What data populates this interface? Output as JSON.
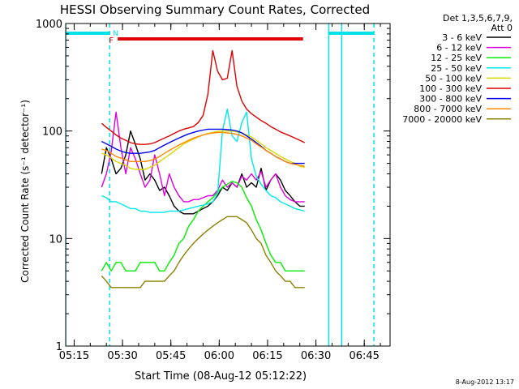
{
  "chart_data": {
    "type": "line",
    "title": "HESSI Observing Summary Count Rates, Corrected",
    "xlabel": "Start Time (08-Aug-12 05:12:22)",
    "ylabel": "Corrected Count Rate (s⁻¹ detector⁻¹)",
    "yscale": "log",
    "ylim": [
      1,
      1000
    ],
    "xlim": [
      "05:12:22",
      "06:53:00"
    ],
    "x_ticks": [
      "05:15",
      "05:30",
      "05:45",
      "06:00",
      "06:15",
      "06:30",
      "06:45"
    ],
    "y_ticks": [
      "1",
      "10",
      "100",
      "1000"
    ],
    "grid": false,
    "legend_position": "top-right outside",
    "legend_header": [
      "Det 1,3,5,6,7,9,",
      "Att 0"
    ],
    "x_minutes": [
      22,
      23.5,
      25,
      26.5,
      28,
      29.5,
      31,
      32.5,
      34,
      35.5,
      37,
      38.5,
      40,
      41.5,
      43,
      44.5,
      46,
      47.5,
      49,
      50.5,
      52,
      53.5,
      55,
      56.5,
      58,
      59.5,
      61,
      62.5,
      64,
      65.5,
      67,
      68.5,
      70,
      71.5,
      73,
      74.5,
      76,
      77.5,
      79,
      80.5,
      82,
      83.5,
      85,
      86.5,
      88
    ],
    "series": [
      {
        "name": "3 - 6 keV",
        "color": "#000000",
        "values": [
          null,
          40,
          70,
          55,
          40,
          45,
          60,
          100,
          75,
          55,
          35,
          40,
          35,
          28,
          30,
          25,
          20,
          18,
          17,
          17,
          17,
          18,
          19,
          20,
          22,
          25,
          30,
          28,
          33,
          30,
          40,
          30,
          33,
          30,
          45,
          28,
          35,
          40,
          35,
          28,
          25,
          22,
          20,
          20,
          null
        ]
      },
      {
        "name": "6 - 12 keV",
        "color": "#dd00dd",
        "values": [
          null,
          30,
          40,
          65,
          150,
          70,
          40,
          70,
          55,
          40,
          30,
          35,
          60,
          40,
          25,
          40,
          30,
          25,
          22,
          22,
          23,
          23,
          24,
          25,
          25,
          28,
          35,
          30,
          33,
          30,
          38,
          35,
          40,
          35,
          42,
          30,
          35,
          40,
          30,
          25,
          23,
          22,
          22,
          22,
          null
        ]
      },
      {
        "name": "12 - 25 keV",
        "color": "#00ee00",
        "values": [
          null,
          5,
          6,
          5,
          6,
          6,
          5,
          5,
          5,
          6,
          6,
          6,
          6,
          5,
          5,
          6,
          7,
          9,
          10,
          13,
          15,
          18,
          20,
          22,
          24,
          27,
          30,
          32,
          34,
          33,
          30,
          24,
          20,
          15,
          12,
          9,
          7,
          6,
          6,
          5,
          5,
          5,
          5,
          5,
          null
        ]
      },
      {
        "name": "25 - 50 keV",
        "color": "#00e8e8",
        "values": [
          null,
          25,
          24,
          22,
          22,
          21,
          20,
          19,
          19,
          18,
          18,
          17.5,
          17.5,
          17.5,
          17.5,
          18,
          18,
          18,
          18.5,
          19,
          19.5,
          20,
          20.5,
          21,
          22,
          26,
          100,
          160,
          90,
          80,
          120,
          150,
          55,
          38,
          32,
          28,
          25,
          24,
          22,
          21,
          20,
          19,
          18.5,
          18,
          null
        ]
      },
      {
        "name": "50 - 100 keV",
        "color": "#d8d800",
        "values": [
          null,
          62,
          60,
          56,
          52,
          50,
          48,
          45,
          44,
          44,
          44,
          46,
          48,
          52,
          56,
          60,
          65,
          70,
          76,
          80,
          84,
          88,
          92,
          95,
          97,
          99,
          100,
          100,
          100,
          98,
          96,
          92,
          88,
          82,
          76,
          70,
          66,
          62,
          58,
          55,
          52,
          50,
          47,
          46,
          null
        ]
      },
      {
        "name": "100 - 300 keV",
        "color": "#dd0000",
        "values": [
          null,
          118,
          108,
          100,
          92,
          86,
          82,
          78,
          76,
          75,
          75,
          76,
          78,
          82,
          86,
          90,
          95,
          100,
          104,
          107,
          110,
          120,
          140,
          220,
          560,
          360,
          300,
          310,
          560,
          260,
          190,
          160,
          145,
          135,
          125,
          118,
          110,
          104,
          98,
          94,
          90,
          86,
          82,
          78,
          null
        ]
      },
      {
        "name": "300 - 800 keV",
        "color": "#0000ee",
        "values": [
          null,
          80,
          76,
          72,
          68,
          65,
          63,
          62,
          62,
          62,
          63,
          64,
          66,
          70,
          74,
          78,
          82,
          86,
          90,
          94,
          97,
          100,
          102,
          104,
          104,
          104,
          104,
          103,
          102,
          100,
          96,
          90,
          84,
          78,
          72,
          66,
          62,
          58,
          55,
          52,
          50,
          50,
          50,
          50,
          null
        ]
      },
      {
        "name": "800 - 7000 keV",
        "color": "#ff8800",
        "values": [
          null,
          68,
          66,
          62,
          58,
          56,
          54,
          52,
          52,
          52,
          52,
          53,
          55,
          58,
          62,
          66,
          70,
          74,
          78,
          82,
          86,
          89,
          92,
          94,
          96,
          97,
          97,
          96,
          95,
          93,
          90,
          86,
          82,
          76,
          71,
          66,
          62,
          58,
          55,
          52,
          50,
          49,
          48,
          47,
          null
        ]
      },
      {
        "name": "7000 - 20000 keV",
        "color": "#8b8000",
        "values": [
          null,
          4.5,
          4,
          3.5,
          3.5,
          3.5,
          3.5,
          3.5,
          3.5,
          3.5,
          4,
          4,
          4,
          4,
          4,
          4.5,
          5,
          6,
          7,
          8,
          9,
          10,
          11,
          12,
          13,
          14,
          15,
          16,
          16,
          16,
          15,
          14,
          12,
          10,
          9,
          7,
          6,
          5,
          4.5,
          4,
          4,
          3.5,
          3.5,
          3.5,
          null
        ]
      }
    ],
    "annotations": {
      "cyan_bars": [
        [
          "05:12:22",
          "05:26"
        ],
        [
          "06:34",
          "06:48"
        ]
      ],
      "cyan_markers": [
        "05:12:22",
        "05:26",
        "06:34",
        "06:38",
        "06:48"
      ],
      "flare_bar": {
        "label": "F",
        "start": "05:28",
        "end": "06:26",
        "color": "#dd0000"
      },
      "night_label": {
        "label": "N",
        "at": "05:26"
      }
    }
  },
  "footer": {
    "timestamp": "8-Aug-2012 13:17"
  }
}
